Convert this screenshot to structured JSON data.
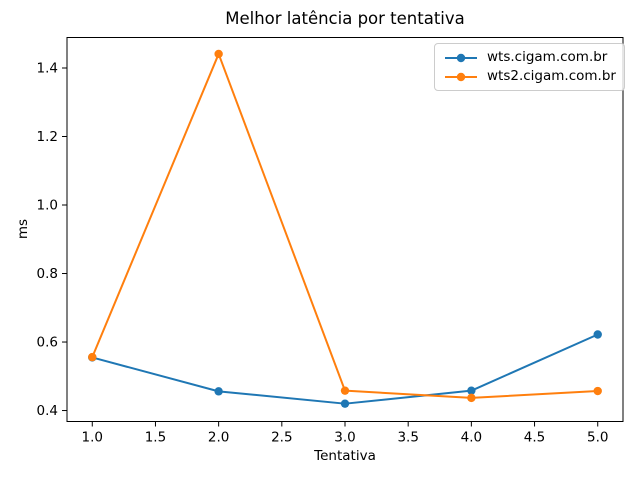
{
  "chart_data": {
    "type": "line",
    "title": "Melhor latência por tentativa",
    "xlabel": "Tentativa",
    "ylabel": "ms",
    "x": [
      1,
      2,
      3,
      4,
      5
    ],
    "series": [
      {
        "name": "wts.cigam.com.br",
        "color": "#1f77b4",
        "marker": "o",
        "values": [
          0.555,
          0.456,
          0.42,
          0.458,
          0.622
        ]
      },
      {
        "name": "wts2.cigam.com.br",
        "color": "#ff7f0e",
        "marker": "o",
        "values": [
          0.556,
          1.441,
          0.458,
          0.437,
          0.457
        ]
      }
    ],
    "xlim": [
      0.8,
      5.2
    ],
    "ylim": [
      0.368,
      1.489
    ],
    "xticks": {
      "values": [
        1.0,
        1.5,
        2.0,
        2.5,
        3.0,
        3.5,
        4.0,
        4.5,
        5.0
      ],
      "labels": [
        "1.0",
        "1.5",
        "2.0",
        "2.5",
        "3.0",
        "3.5",
        "4.0",
        "4.5",
        "5.0"
      ]
    },
    "yticks": {
      "values": [
        0.4,
        0.6,
        0.8,
        1.0,
        1.2,
        1.4
      ],
      "labels": [
        "0.4",
        "0.6",
        "0.8",
        "1.0",
        "1.2",
        "1.4"
      ]
    },
    "grid": false,
    "legend_position": "upper right",
    "background": "#ffffff",
    "spine_color": "#000000"
  }
}
